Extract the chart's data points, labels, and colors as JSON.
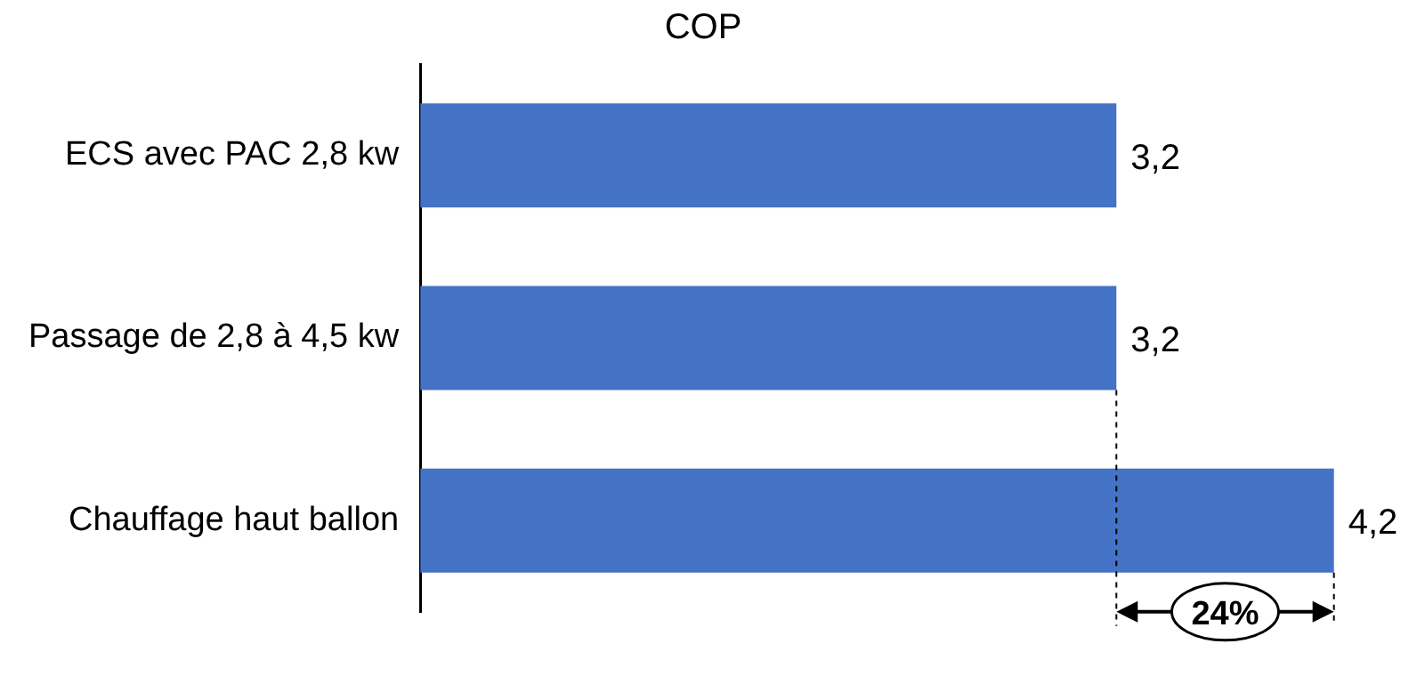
{
  "chart_data": {
    "type": "bar",
    "orientation": "horizontal",
    "title": "COP",
    "categories": [
      "ECS avec PAC 2,8 kw",
      "Passage de 2,8 à 4,5 kw",
      "Chauffage haut ballon"
    ],
    "values": [
      3.2,
      3.2,
      4.2
    ],
    "value_labels": [
      "3,2",
      "3,2",
      "4,2"
    ],
    "color": "#4472c4",
    "legend": false,
    "tick_labels": "y",
    "annotations": [
      "24%"
    ]
  }
}
